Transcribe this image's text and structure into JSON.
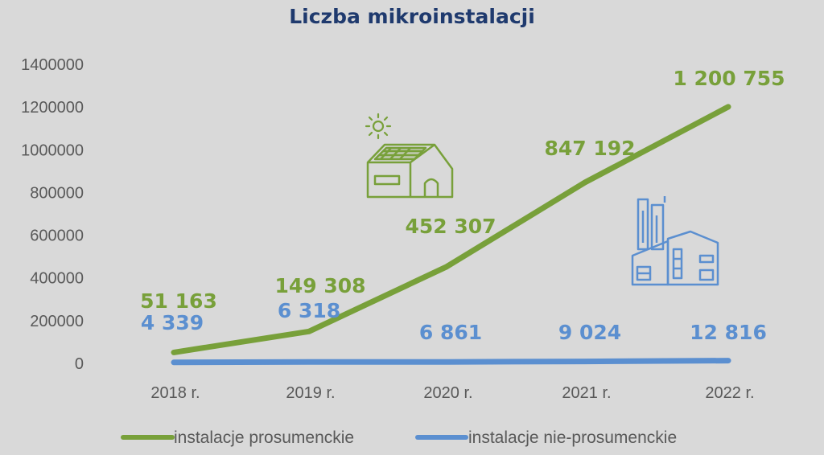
{
  "chart_data": {
    "type": "line",
    "title": "Liczba mikroinstalacji",
    "categories": [
      "2018 r.",
      "2019 r.",
      "2020 r.",
      "2021 r.",
      "2022 r."
    ],
    "ylim": [
      0,
      1400000
    ],
    "yticks": [
      "0",
      "200000",
      "400000",
      "600000",
      "800000",
      "1000000",
      "1200000",
      "1400000"
    ],
    "grid": false,
    "legend_position": "bottom",
    "series": [
      {
        "name": "instalacje prosumenckie",
        "color": "#78a03a",
        "values": [
          51163,
          149308,
          452307,
          847192,
          1200755
        ],
        "labels": [
          "51 163",
          "149 308",
          "452 307",
          "847 192",
          "1 200 755"
        ]
      },
      {
        "name": "instalacje nie-prosumenckie",
        "color": "#5b8fd0",
        "values": [
          4339,
          6318,
          6861,
          9024,
          12816
        ],
        "labels": [
          "4 339",
          "6 318",
          "6 861",
          "9 024",
          "12 816"
        ]
      }
    ],
    "title_color": "#1f3a6e",
    "icons": [
      "sun-icon",
      "solar-house-icon",
      "factory-icon"
    ]
  }
}
